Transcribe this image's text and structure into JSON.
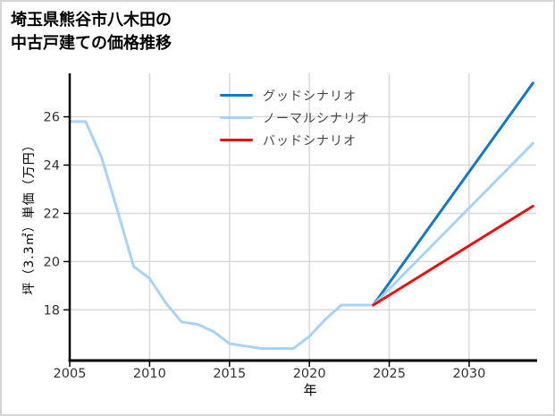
{
  "title": {
    "line1": "埼玉県熊谷市八木田の",
    "line2": "中古戸建ての価格推移"
  },
  "axes": {
    "x_label": "年",
    "y_label": "坪（3.3㎡）単価（万円）",
    "x_ticks": [
      2005,
      2010,
      2015,
      2020,
      2025,
      2030
    ],
    "y_ticks": [
      18,
      20,
      22,
      24,
      26
    ]
  },
  "colors": {
    "good": "#1678c2",
    "normal": "#a8d2f7",
    "bad": "#e81010",
    "history": "#a8d2f7",
    "grid": "#d9d9d9",
    "spine": "#000000",
    "tick_text": "#333333"
  },
  "chart_data": {
    "type": "line",
    "title": "埼玉県熊谷市八木田の中古戸建ての価格推移",
    "xlabel": "年",
    "ylabel": "坪（3.3㎡）単価（万円）",
    "xlim": [
      2005,
      2034.2
    ],
    "ylim": [
      15.9,
      27.8
    ],
    "grid": true,
    "legend_position": "top-center-inside",
    "series": [
      {
        "name": "",
        "slug": "history",
        "color": "#a8d2f7",
        "in_legend": false,
        "x": [
          2005,
          2006,
          2007,
          2008,
          2009,
          2010,
          2011,
          2012,
          2013,
          2014,
          2015,
          2016,
          2017,
          2018,
          2019,
          2020,
          2021,
          2022,
          2023,
          2024
        ],
        "y": [
          25.8,
          25.8,
          24.3,
          22.1,
          19.8,
          19.3,
          18.3,
          17.5,
          17.4,
          17.1,
          16.6,
          16.5,
          16.4,
          16.4,
          16.4,
          16.9,
          17.6,
          18.2,
          18.2,
          18.2
        ]
      },
      {
        "name": "グッドシナリオ",
        "slug": "good-scenario",
        "color": "#1678c2",
        "in_legend": true,
        "x": [
          2024,
          2034
        ],
        "y": [
          18.2,
          27.4
        ]
      },
      {
        "name": "ノーマルシナリオ",
        "slug": "normal-scenario",
        "color": "#a8d2f7",
        "in_legend": true,
        "x": [
          2024,
          2034
        ],
        "y": [
          18.2,
          24.9
        ]
      },
      {
        "name": "バッドシナリオ",
        "slug": "bad-scenario",
        "color": "#e81010",
        "in_legend": true,
        "x": [
          2024,
          2034
        ],
        "y": [
          18.2,
          22.3
        ]
      }
    ]
  }
}
